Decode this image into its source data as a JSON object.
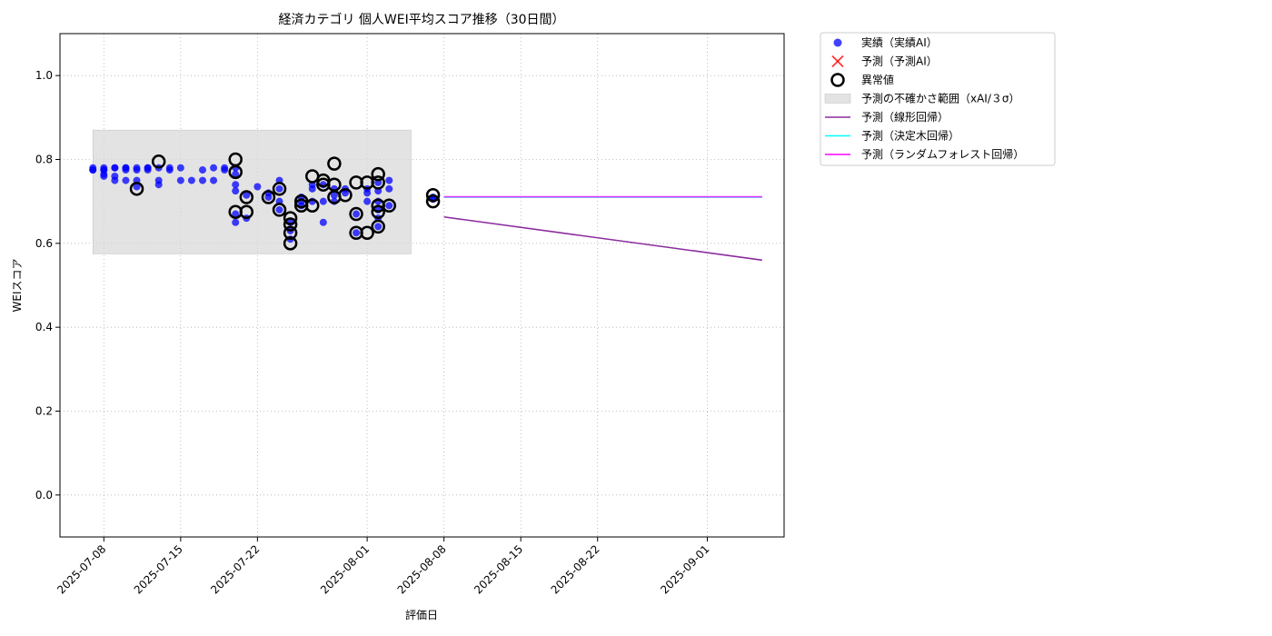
{
  "chart_data": {
    "type": "scatter",
    "title": "経済カテゴリ 個人WEI平均スコア推移（30日間）",
    "xlabel": "評価日",
    "ylabel": "WEIスコア",
    "xlim": [
      "2025-07-04",
      "2025-09-08"
    ],
    "ylim": [
      -0.1,
      1.1
    ],
    "x_ticks": [
      "2025-07-08",
      "2025-07-15",
      "2025-07-22",
      "2025-08-01",
      "2025-08-08",
      "2025-08-15",
      "2025-08-22",
      "2025-09-01"
    ],
    "y_ticks": [
      "0.0",
      "0.2",
      "0.4",
      "0.6",
      "0.8",
      "1.0"
    ],
    "grid": true,
    "legend_position": "outside-upper-right",
    "colors": {
      "actual": "#0000ff",
      "prediction_ai": "#ff0000",
      "anomaly": "#000000",
      "uncertainty": "#d9d9d9",
      "linear": "#8b2b9e",
      "tree": "#00ffff",
      "forest": "#ff00ff"
    },
    "legend": [
      {
        "key": "actual",
        "label": "実績（実績AI）"
      },
      {
        "key": "prediction_ai",
        "label": "予測（予測AI）"
      },
      {
        "key": "anomaly",
        "label": "異常値"
      },
      {
        "key": "uncertainty",
        "label": "予測の不確かさ範囲（xAI/３σ）"
      },
      {
        "key": "linear",
        "label": "予測（線形回帰）"
      },
      {
        "key": "tree",
        "label": "予測（決定木回帰）"
      },
      {
        "key": "forest",
        "label": "予測（ランダムフォレスト回帰）"
      }
    ],
    "uncertainty_band": {
      "x": [
        "2025-07-07",
        "2025-08-05"
      ],
      "y": [
        0.575,
        0.87
      ]
    },
    "series": [
      {
        "key": "actual",
        "name": "実績（実績AI）",
        "points": [
          [
            "2025-07-07",
            0.775
          ],
          [
            "2025-07-07",
            0.78
          ],
          [
            "2025-07-07",
            0.775
          ],
          [
            "2025-07-08",
            0.76
          ],
          [
            "2025-07-08",
            0.765
          ],
          [
            "2025-07-08",
            0.775
          ],
          [
            "2025-07-08",
            0.78
          ],
          [
            "2025-07-08",
            0.775
          ],
          [
            "2025-07-09",
            0.78
          ],
          [
            "2025-07-09",
            0.78
          ],
          [
            "2025-07-09",
            0.76
          ],
          [
            "2025-07-09",
            0.75
          ],
          [
            "2025-07-10",
            0.78
          ],
          [
            "2025-07-10",
            0.775
          ],
          [
            "2025-07-10",
            0.78
          ],
          [
            "2025-07-10",
            0.75
          ],
          [
            "2025-07-11",
            0.78
          ],
          [
            "2025-07-11",
            0.775
          ],
          [
            "2025-07-11",
            0.75
          ],
          [
            "2025-07-11",
            0.735
          ],
          [
            "2025-07-12",
            0.78
          ],
          [
            "2025-07-12",
            0.775
          ],
          [
            "2025-07-12",
            0.78
          ],
          [
            "2025-07-13",
            0.78
          ],
          [
            "2025-07-13",
            0.75
          ],
          [
            "2025-07-13",
            0.74
          ],
          [
            "2025-07-14",
            0.775
          ],
          [
            "2025-07-14",
            0.78
          ],
          [
            "2025-07-15",
            0.78
          ],
          [
            "2025-07-15",
            0.75
          ],
          [
            "2025-07-16",
            0.75
          ],
          [
            "2025-07-17",
            0.775
          ],
          [
            "2025-07-17",
            0.75
          ],
          [
            "2025-07-18",
            0.78
          ],
          [
            "2025-07-18",
            0.75
          ],
          [
            "2025-07-19",
            0.78
          ],
          [
            "2025-07-19",
            0.775
          ],
          [
            "2025-07-20",
            0.78
          ],
          [
            "2025-07-20",
            0.765
          ],
          [
            "2025-07-20",
            0.74
          ],
          [
            "2025-07-20",
            0.725
          ],
          [
            "2025-07-20",
            0.67
          ],
          [
            "2025-07-20",
            0.65
          ],
          [
            "2025-07-21",
            0.715
          ],
          [
            "2025-07-21",
            0.66
          ],
          [
            "2025-07-22",
            0.735
          ],
          [
            "2025-07-23",
            0.72
          ],
          [
            "2025-07-23",
            0.71
          ],
          [
            "2025-07-24",
            0.75
          ],
          [
            "2025-07-24",
            0.73
          ],
          [
            "2025-07-24",
            0.7
          ],
          [
            "2025-07-24",
            0.68
          ],
          [
            "2025-07-25",
            0.65
          ],
          [
            "2025-07-25",
            0.63
          ],
          [
            "2025-07-25",
            0.61
          ],
          [
            "2025-07-26",
            0.71
          ],
          [
            "2025-07-26",
            0.69
          ],
          [
            "2025-07-26",
            0.7
          ],
          [
            "2025-07-27",
            0.74
          ],
          [
            "2025-07-27",
            0.73
          ],
          [
            "2025-07-27",
            0.7
          ],
          [
            "2025-07-28",
            0.74
          ],
          [
            "2025-07-28",
            0.7
          ],
          [
            "2025-07-28",
            0.65
          ],
          [
            "2025-07-29",
            0.73
          ],
          [
            "2025-07-29",
            0.7
          ],
          [
            "2025-07-29",
            0.715
          ],
          [
            "2025-07-30",
            0.72
          ],
          [
            "2025-07-30",
            0.73
          ],
          [
            "2025-07-31",
            0.625
          ],
          [
            "2025-07-31",
            0.67
          ],
          [
            "2025-08-01",
            0.73
          ],
          [
            "2025-08-01",
            0.72
          ],
          [
            "2025-08-01",
            0.7
          ],
          [
            "2025-08-02",
            0.745
          ],
          [
            "2025-08-02",
            0.725
          ],
          [
            "2025-08-02",
            0.7
          ],
          [
            "2025-08-02",
            0.68
          ],
          [
            "2025-08-02",
            0.66
          ],
          [
            "2025-08-02",
            0.64
          ],
          [
            "2025-08-03",
            0.75
          ],
          [
            "2025-08-03",
            0.73
          ],
          [
            "2025-08-03",
            0.69
          ],
          [
            "2025-08-07",
            0.71
          ],
          [
            "2025-08-07",
            0.705
          ]
        ]
      },
      {
        "key": "anomaly",
        "name": "異常値",
        "points": [
          [
            "2025-07-11",
            0.73
          ],
          [
            "2025-07-13",
            0.795
          ],
          [
            "2025-07-20",
            0.8
          ],
          [
            "2025-07-20",
            0.77
          ],
          [
            "2025-07-20",
            0.675
          ],
          [
            "2025-07-21",
            0.71
          ],
          [
            "2025-07-21",
            0.675
          ],
          [
            "2025-07-23",
            0.71
          ],
          [
            "2025-07-24",
            0.73
          ],
          [
            "2025-07-24",
            0.68
          ],
          [
            "2025-07-25",
            0.66
          ],
          [
            "2025-07-25",
            0.645
          ],
          [
            "2025-07-25",
            0.625
          ],
          [
            "2025-07-25",
            0.6
          ],
          [
            "2025-07-26",
            0.7
          ],
          [
            "2025-07-26",
            0.69
          ],
          [
            "2025-07-27",
            0.76
          ],
          [
            "2025-07-27",
            0.69
          ],
          [
            "2025-07-28",
            0.75
          ],
          [
            "2025-07-28",
            0.74
          ],
          [
            "2025-07-29",
            0.79
          ],
          [
            "2025-07-29",
            0.74
          ],
          [
            "2025-07-29",
            0.71
          ],
          [
            "2025-07-30",
            0.715
          ],
          [
            "2025-07-31",
            0.745
          ],
          [
            "2025-07-31",
            0.67
          ],
          [
            "2025-07-31",
            0.625
          ],
          [
            "2025-08-01",
            0.745
          ],
          [
            "2025-08-01",
            0.625
          ],
          [
            "2025-08-02",
            0.765
          ],
          [
            "2025-08-02",
            0.745
          ],
          [
            "2025-08-02",
            0.69
          ],
          [
            "2025-08-02",
            0.675
          ],
          [
            "2025-08-02",
            0.64
          ],
          [
            "2025-08-03",
            0.69
          ],
          [
            "2025-08-07",
            0.715
          ],
          [
            "2025-08-07",
            0.7
          ]
        ]
      },
      {
        "key": "linear",
        "name": "予測（線形回帰）",
        "line": [
          [
            "2025-08-08",
            0.663
          ],
          [
            "2025-09-06",
            0.56
          ]
        ]
      },
      {
        "key": "tree",
        "name": "予測（決定木回帰）",
        "line": [
          [
            "2025-08-08",
            0.71
          ],
          [
            "2025-09-06",
            0.71
          ]
        ]
      },
      {
        "key": "forest",
        "name": "予測（ランダムフォレスト回帰）",
        "line": [
          [
            "2025-08-08",
            0.711
          ],
          [
            "2025-09-06",
            0.711
          ]
        ]
      }
    ]
  }
}
